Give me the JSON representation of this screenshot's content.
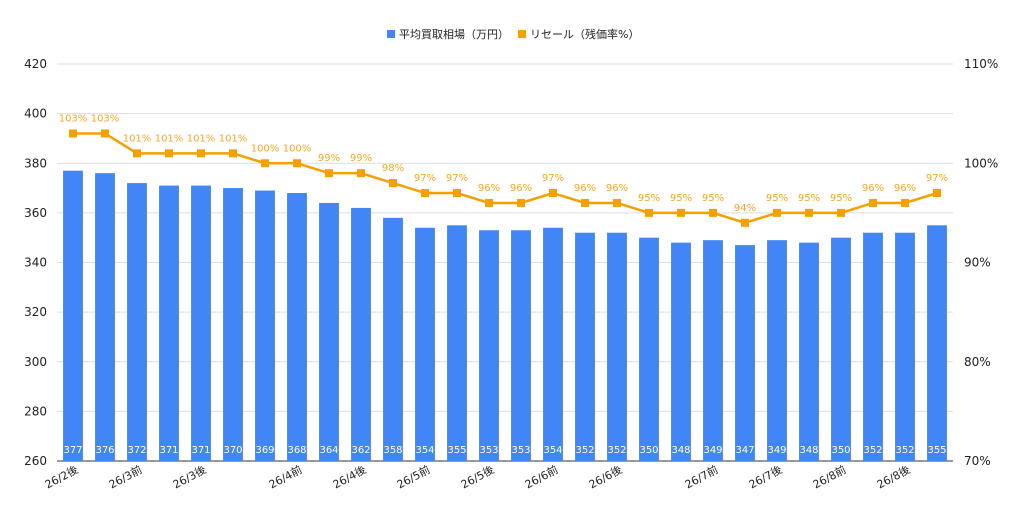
{
  "chart_data": {
    "type": "bar",
    "legend_position": "top-center",
    "grid": true,
    "categories": [
      "26/2後",
      "",
      "26/3前",
      "",
      "26/3後",
      "",
      "",
      "26/4前",
      "",
      "26/4後",
      "",
      "26/5前",
      "",
      "26/5後",
      "",
      "26/6前",
      "",
      "26/6後",
      "",
      "",
      "26/7前",
      "",
      "26/7後",
      "",
      "26/8前",
      "",
      "26/8後",
      ""
    ],
    "series": [
      {
        "name": "平均買取相場（万円）",
        "type": "bar",
        "axis": "left",
        "color": "#4285f4",
        "values": [
          377,
          376,
          372,
          371,
          371,
          370,
          369,
          368,
          364,
          362,
          358,
          354,
          355,
          353,
          353,
          354,
          352,
          352,
          350,
          348,
          349,
          347,
          349,
          348,
          350,
          352,
          352,
          355
        ],
        "labels": [
          "377",
          "376",
          "372",
          "371",
          "371",
          "370",
          "369",
          "368",
          "364",
          "362",
          "358",
          "354",
          "355",
          "353",
          "353",
          "354",
          "352",
          "352",
          "350",
          "348",
          "349",
          "347",
          "349",
          "348",
          "350",
          "352",
          "352",
          "355"
        ]
      },
      {
        "name": "リセール（残価率%）",
        "type": "line",
        "axis": "right",
        "color": "#f5a000",
        "values": [
          103,
          103,
          101,
          101,
          101,
          101,
          100,
          100,
          99,
          99,
          98,
          97,
          97,
          96,
          96,
          97,
          96,
          96,
          95,
          95,
          95,
          94,
          95,
          95,
          95,
          96,
          96,
          97
        ],
        "labels": [
          "103%",
          "103%",
          "101%",
          "101%",
          "101%",
          "101%",
          "100%",
          "100%",
          "99%",
          "99%",
          "98%",
          "97%",
          "97%",
          "96%",
          "96%",
          "97%",
          "96%",
          "96%",
          "95%",
          "95%",
          "95%",
          "94%",
          "95%",
          "95%",
          "95%",
          "96%",
          "96%",
          "97%"
        ]
      }
    ],
    "y_left": {
      "ylim": [
        260,
        420
      ],
      "ticks": [
        "260",
        "280",
        "300",
        "320",
        "340",
        "360",
        "380",
        "400",
        "420"
      ]
    },
    "y_right": {
      "ylim": [
        70,
        110
      ],
      "ticks": [
        "70%",
        "80%",
        "90%",
        "100%",
        "110%"
      ]
    }
  }
}
